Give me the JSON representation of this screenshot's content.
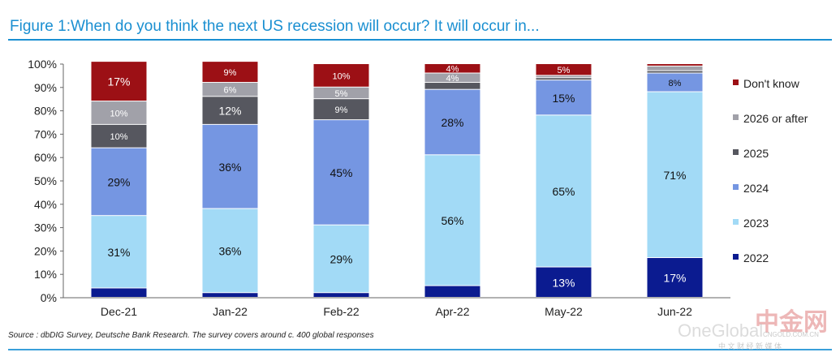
{
  "chart_data": {
    "type": "bar",
    "stacked": true,
    "title": "Figure 1:When do you think the next US recession will occur? It will occur in...",
    "xlabel": "",
    "ylabel": "",
    "ylim": [
      0,
      100
    ],
    "yticks": [
      "0%",
      "10%",
      "20%",
      "30%",
      "40%",
      "50%",
      "60%",
      "70%",
      "80%",
      "90%",
      "100%"
    ],
    "categories": [
      "Dec-21",
      "Jan-22",
      "Feb-22",
      "Apr-22",
      "May-22",
      "Jun-22"
    ],
    "series": [
      {
        "name": "2022",
        "color": "#0b1b90",
        "label_color": "#ffffff",
        "values": [
          4,
          2,
          2,
          5,
          13,
          17
        ],
        "labels": [
          "",
          "",
          "",
          "",
          "13%",
          "17%"
        ]
      },
      {
        "name": "2023",
        "color": "#a2daf6",
        "label_color": "#111111",
        "values": [
          31,
          36,
          29,
          56,
          65,
          71
        ],
        "labels": [
          "31%",
          "36%",
          "29%",
          "56%",
          "65%",
          "71%"
        ]
      },
      {
        "name": "2024",
        "color": "#7596e2",
        "label_color": "#111111",
        "values": [
          29,
          36,
          45,
          28,
          15,
          8
        ],
        "labels": [
          "29%",
          "36%",
          "45%",
          "28%",
          "15%",
          "8%"
        ]
      },
      {
        "name": "2025",
        "color": "#56575f",
        "label_color": "#ffffff",
        "values": [
          10,
          12,
          9,
          3,
          1,
          1
        ],
        "labels": [
          "10%",
          "12%",
          "9%",
          "",
          "",
          ""
        ]
      },
      {
        "name": "2026 or after",
        "color": "#a1a1a9",
        "label_color": "#ffffff",
        "values": [
          10,
          6,
          5,
          4,
          1,
          2
        ],
        "labels": [
          "10%",
          "6%",
          "5%",
          "4%",
          "",
          ""
        ]
      },
      {
        "name": "Don't know",
        "color": "#9c1015",
        "label_color": "#ffffff",
        "values": [
          17,
          9,
          10,
          4,
          5,
          1
        ],
        "labels": [
          "17%",
          "9%",
          "10%",
          "4%",
          "5%",
          ""
        ]
      }
    ],
    "legend": "right",
    "grid": false
  },
  "source": "Source : dbDIG Survey, Deutsche Bank Research. The survey covers around c. 400 global responses",
  "watermark": {
    "brand": "中金网",
    "site": "CNGOLD.COM.CN",
    "tagline": "中 文 财 经 新 媒 体",
    "account": "OneGlobal"
  }
}
